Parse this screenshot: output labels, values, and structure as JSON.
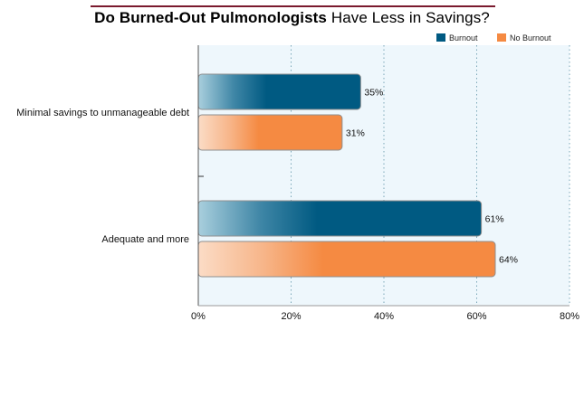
{
  "title": {
    "bold": "Do Burned-Out Pulmonologists",
    "rest": "Have Less in Savings?"
  },
  "colors": {
    "title_rule": "#7a1a2e",
    "plot_bg": "#eef7fc",
    "burnout": "#005a82",
    "no_burnout": "#f58a42"
  },
  "chart_data": {
    "type": "bar",
    "orientation": "horizontal",
    "categories": [
      "Minimal savings to unmanageable debt",
      "Adequate and more"
    ],
    "series": [
      {
        "name": "Burnout",
        "values": [
          35,
          61
        ],
        "color": "#005a82"
      },
      {
        "name": "No Burnout",
        "values": [
          31,
          64
        ],
        "color": "#f58a42"
      }
    ],
    "xlim": [
      0,
      80
    ],
    "xticks": [
      0,
      20,
      40,
      60,
      80
    ],
    "tick_suffix": "%",
    "grid": "vertical dotted",
    "legend_position": "top-right"
  }
}
